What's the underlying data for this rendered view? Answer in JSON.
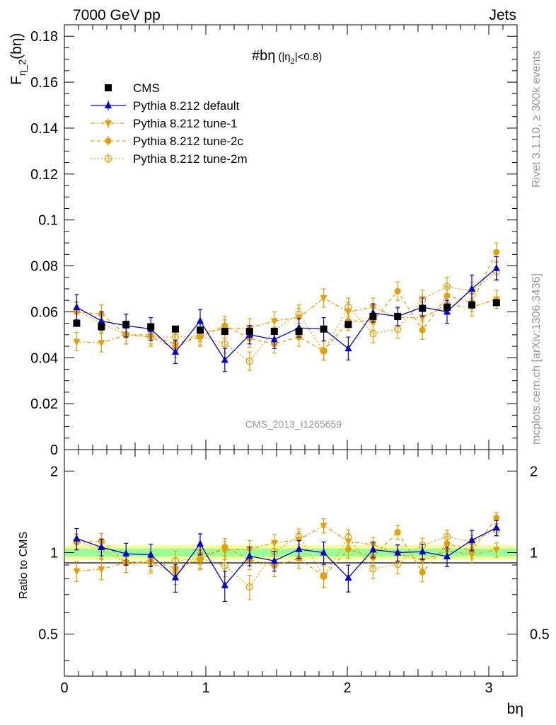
{
  "header": {
    "left": "7000 GeV pp",
    "right": "Jets"
  },
  "side_texts": {
    "rivet": "Rivet 3.1.10, ≥ 300k events",
    "mcplots": "mcplots.cern.ch [arXiv:1306.3436]"
  },
  "watermark": "CMS_2013_I1265659",
  "plot_title": {
    "main": "#bη",
    "cut_open": "(|η",
    "cut_sub": "2",
    "cut_close": "|<0.8)"
  },
  "ylabel_top": {
    "main": "F",
    "sub": "η_2",
    "arg": "(bη)"
  },
  "ylabel_bottom": "Ratio to CMS",
  "xlabel": "bη",
  "top_ticks": [
    "0",
    "0.02",
    "0.04",
    "0.06",
    "0.08",
    "0.1",
    "0.12",
    "0.14",
    "0.16",
    "0.18"
  ],
  "bottom_ticks_right": [
    "2",
    "1",
    "0.5"
  ],
  "bottom_ticks_left": [
    "2",
    "1",
    "0.5"
  ],
  "x_ticks": [
    "0",
    "1",
    "2",
    "3"
  ],
  "colors": {
    "cms": "#000000",
    "default": "#0000cc",
    "orange": "#e5a000",
    "band_yellow": "#ffff99",
    "band_green": "#99ff99"
  },
  "legend": [
    {
      "label": "CMS",
      "marker": "filled-square",
      "color": "#000000"
    },
    {
      "label": "Pythia 8.212 default",
      "marker": "filled-triangle-up",
      "color": "#0000cc"
    },
    {
      "label": "Pythia 8.212 tune-1",
      "marker": "filled-triangle-down",
      "color": "#e5a000"
    },
    {
      "label": "Pythia 8.212 tune-2c",
      "marker": "filled-circle",
      "color": "#e5a000"
    },
    {
      "label": "Pythia 8.212 tune-2m",
      "marker": "open-circle",
      "color": "#e5a000"
    }
  ],
  "chart_data": {
    "type": "scatter",
    "xlabel": "bη",
    "ylabel": "F_{η_2}(bη)",
    "xlim": [
      0,
      3.2
    ],
    "ylim": [
      0,
      0.185
    ],
    "ratio_ylim": [
      0.35,
      2.4
    ],
    "ratio_scale": "log",
    "legend_position": "top-left",
    "x": [
      0.087,
      0.262,
      0.436,
      0.611,
      0.785,
      0.96,
      1.134,
      1.309,
      1.484,
      1.658,
      1.833,
      2.007,
      2.182,
      2.356,
      2.531,
      2.705,
      2.88,
      3.054
    ],
    "series": [
      {
        "name": "CMS",
        "values": [
          0.055,
          0.0535,
          0.0545,
          0.0535,
          0.0525,
          0.052,
          0.0515,
          0.0515,
          0.0515,
          0.0515,
          0.0525,
          0.0545,
          0.058,
          0.058,
          0.0615,
          0.062,
          0.063,
          0.064
        ]
      },
      {
        "name": "Pythia 8.212 default",
        "values": [
          0.062,
          0.056,
          0.054,
          0.0525,
          0.0425,
          0.056,
          0.039,
          0.05,
          0.048,
          0.053,
          0.0525,
          0.044,
          0.0595,
          0.058,
          0.062,
          0.06,
          0.07,
          0.079
        ]
      },
      {
        "name": "Pythia 8.212 tune-1",
        "values": [
          0.047,
          0.0465,
          0.05,
          0.049,
          0.044,
          0.051,
          0.0525,
          0.053,
          0.056,
          0.0575,
          0.066,
          0.06,
          0.062,
          0.0575,
          0.0575,
          0.063,
          0.062,
          0.0655
        ]
      },
      {
        "name": "Pythia 8.212 tune-2c",
        "values": [
          0.06,
          0.059,
          0.05,
          0.05,
          0.046,
          0.049,
          0.054,
          0.0485,
          0.046,
          0.049,
          0.043,
          0.056,
          0.056,
          0.069,
          0.052,
          0.067,
          0.064,
          0.086
        ]
      },
      {
        "name": "Pythia 8.212 tune-2m",
        "values": [
          0.0605,
          0.055,
          0.05,
          0.049,
          0.049,
          0.0495,
          0.046,
          0.0385,
          0.052,
          0.059,
          0.043,
          0.062,
          0.0505,
          0.0525,
          0.0655,
          0.071,
          0.069,
          0.0775
        ]
      }
    ],
    "error_bars": {
      "CMS": 0.0012,
      "Pythia 8.212 default": [
        0.0055,
        0.004,
        0.005,
        0.005,
        0.005,
        0.005,
        0.005,
        0.004,
        0.004,
        0.004,
        0.005,
        0.005,
        0.004,
        0.004,
        0.004,
        0.005,
        0.006,
        0.005
      ],
      "others": 0.004
    }
  }
}
